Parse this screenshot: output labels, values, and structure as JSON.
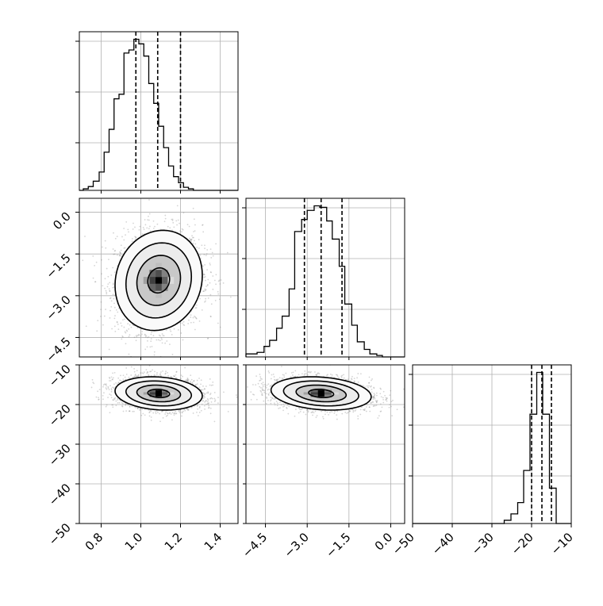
{
  "chart_data": {
    "type": "corner",
    "parameters": [
      {
        "axis_ticks": [
          "0.8",
          "1.0",
          "1.2",
          "1.4"
        ],
        "axis_tick_values": [
          0.8,
          1.0,
          1.2,
          1.4
        ],
        "range": [
          0.69,
          1.49
        ],
        "quantiles": [
          0.975,
          1.085,
          1.2
        ]
      },
      {
        "axis_ticks": [
          "0.0",
          "−1.5",
          "−3.0",
          "−4.5"
        ],
        "axis_tick_values": [
          0.0,
          -1.5,
          -3.0,
          -4.5
        ],
        "range": [
          -5.2,
          0.5
        ],
        "quantiles": [
          -3.1,
          -2.5,
          -1.75
        ]
      },
      {
        "axis_ticks": [
          "−10",
          "−20",
          "−30",
          "−40",
          "−50"
        ],
        "axis_tick_values": [
          -10,
          -20,
          -30,
          -40,
          -50
        ],
        "range": [
          -50,
          -10
        ],
        "quantiles": [
          -20.0,
          -17.4,
          -15.0
        ]
      }
    ],
    "histograms": [
      {
        "bin_edges": [
          0.69,
          0.71,
          0.735,
          0.76,
          0.79,
          0.815,
          0.84,
          0.865,
          0.89,
          0.915,
          0.94,
          0.965,
          0.99,
          1.015,
          1.04,
          1.065,
          1.09,
          1.115,
          1.14,
          1.165,
          1.19,
          1.215,
          1.24,
          1.265,
          1.29,
          1.315,
          1.34,
          1.365,
          1.39,
          1.415,
          1.44,
          1.49
        ],
        "counts": [
          0.0,
          0.01,
          0.025,
          0.06,
          0.12,
          0.25,
          0.4,
          0.6,
          0.63,
          0.9,
          0.92,
          0.99,
          0.96,
          0.88,
          0.7,
          0.57,
          0.42,
          0.28,
          0.16,
          0.09,
          0.05,
          0.02,
          0.01,
          0.0,
          0.0,
          0.0,
          0.0,
          0.0,
          0.0,
          0.0,
          0.0
        ]
      },
      {
        "bin_edges": [
          -5.2,
          -4.8,
          -4.55,
          -4.35,
          -4.1,
          -3.9,
          -3.65,
          -3.45,
          -3.2,
          -3.0,
          -2.75,
          -2.55,
          -2.3,
          -2.1,
          -1.85,
          -1.65,
          -1.4,
          -1.2,
          -0.95,
          -0.75,
          -0.5,
          -0.3,
          0.5
        ],
        "counts": [
          0.02,
          0.03,
          0.07,
          0.11,
          0.19,
          0.27,
          0.45,
          0.83,
          0.91,
          0.97,
          1.0,
          0.99,
          0.9,
          0.78,
          0.6,
          0.35,
          0.21,
          0.1,
          0.05,
          0.02,
          0.01,
          0.0
        ]
      },
      {
        "bin_edges": [
          -50,
          -26.9,
          -25.2,
          -23.5,
          -22.0,
          -20.4,
          -18.7,
          -17.2,
          -15.5,
          -13.8,
          -12.2,
          -10
        ],
        "counts": [
          0.0,
          0.02,
          0.06,
          0.13,
          0.33,
          0.68,
          0.94,
          0.68,
          0.22,
          0.0,
          0.0
        ]
      }
    ],
    "pairs": [
      {
        "x_param": 0,
        "y_param": 1,
        "center": [
          1.09,
          -2.45
        ],
        "sigma": [
          0.11,
          0.9
        ],
        "rho": 0.1
      },
      {
        "x_param": 0,
        "y_param": 2,
        "center": [
          1.09,
          -17.2
        ],
        "sigma": [
          0.11,
          2.1
        ],
        "rho": -0.15
      },
      {
        "x_param": 1,
        "y_param": 2,
        "center": [
          -2.5,
          -17.2
        ],
        "sigma": [
          0.9,
          2.1
        ],
        "rho": -0.2
      }
    ],
    "grid": true
  }
}
